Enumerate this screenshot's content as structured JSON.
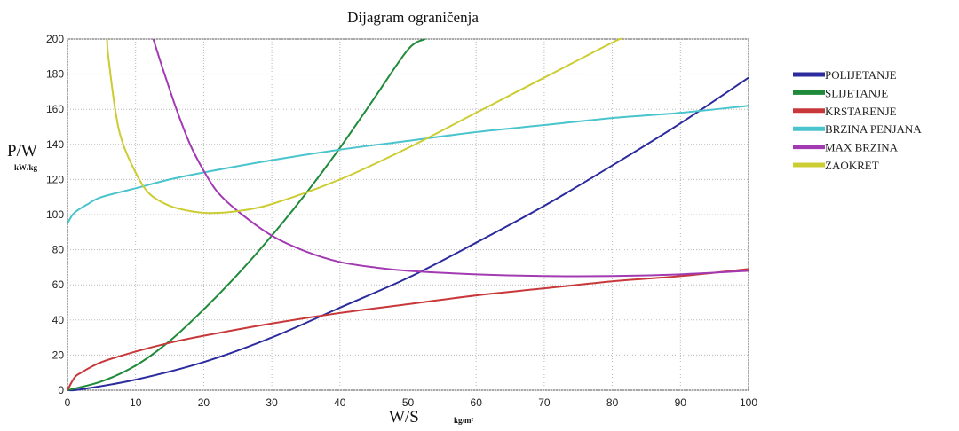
{
  "chart_data": {
    "type": "line",
    "title": "Dijagram ograničenja",
    "xlabel": "W/S",
    "xunit": "kg/m²",
    "ylabel": "P/W",
    "yunit": "kW/kg",
    "xlim": [
      0,
      100
    ],
    "ylim": [
      0,
      200
    ],
    "xticks": [
      0,
      10,
      20,
      30,
      40,
      50,
      60,
      70,
      80,
      90,
      100
    ],
    "yticks": [
      0,
      20,
      40,
      60,
      80,
      100,
      120,
      140,
      160,
      180,
      200
    ],
    "grid": true,
    "legend_position": "right",
    "series": [
      {
        "name": "POLIJETANJE",
        "color": "#2b2b9e",
        "x": [
          0,
          2,
          10,
          20,
          30,
          40,
          50,
          60,
          70,
          80,
          90,
          100
        ],
        "y": [
          0,
          0.5,
          6,
          16,
          30,
          47,
          64,
          84,
          105,
          128,
          152,
          178
        ]
      },
      {
        "name": "SLIJETANJE",
        "color": "#1f8a3a",
        "x": [
          0,
          5,
          10,
          15,
          20,
          25,
          30,
          35,
          40,
          45,
          50,
          52.5
        ],
        "y": [
          0,
          5,
          14,
          28,
          46,
          66,
          88,
          112,
          138,
          166,
          194,
          200
        ]
      },
      {
        "name": "KRSTARENJE",
        "color": "#c8383a",
        "x": [
          0,
          1,
          2,
          5,
          10,
          15,
          20,
          30,
          40,
          50,
          60,
          70,
          80,
          90,
          100
        ],
        "y": [
          0,
          7,
          10,
          16,
          22,
          27,
          31,
          38,
          44,
          49,
          54,
          58,
          62,
          65,
          69
        ]
      },
      {
        "name": "BRZINA PENJANA",
        "color": "#49c4cc",
        "x": [
          0,
          1,
          3,
          5,
          10,
          15,
          20,
          30,
          40,
          50,
          60,
          70,
          80,
          90,
          100
        ],
        "y": [
          95,
          101,
          106,
          110,
          115,
          120,
          124,
          131,
          137,
          142,
          147,
          151,
          155,
          158,
          162
        ]
      },
      {
        "name": "MAX BRZINA",
        "color": "#a23bb2",
        "x": [
          12.6,
          14,
          16,
          18,
          20,
          22,
          25,
          30,
          35,
          40,
          45,
          50,
          60,
          70,
          80,
          90,
          100
        ],
        "y": [
          200,
          183,
          160,
          140,
          125,
          113,
          102,
          88,
          79,
          73,
          70,
          68,
          66,
          65,
          65,
          66,
          68
        ]
      },
      {
        "name": "ZAOKRET",
        "color": "#cccc33",
        "x": [
          5.8,
          6,
          7,
          8,
          10,
          12,
          15,
          18,
          20,
          22,
          25,
          30,
          40,
          50,
          60,
          70,
          80,
          81.5
        ],
        "y": [
          200,
          190,
          160,
          142,
          124,
          112,
          105,
          102,
          101,
          101,
          102,
          106,
          120,
          138,
          158,
          178,
          198,
          200
        ]
      }
    ]
  }
}
